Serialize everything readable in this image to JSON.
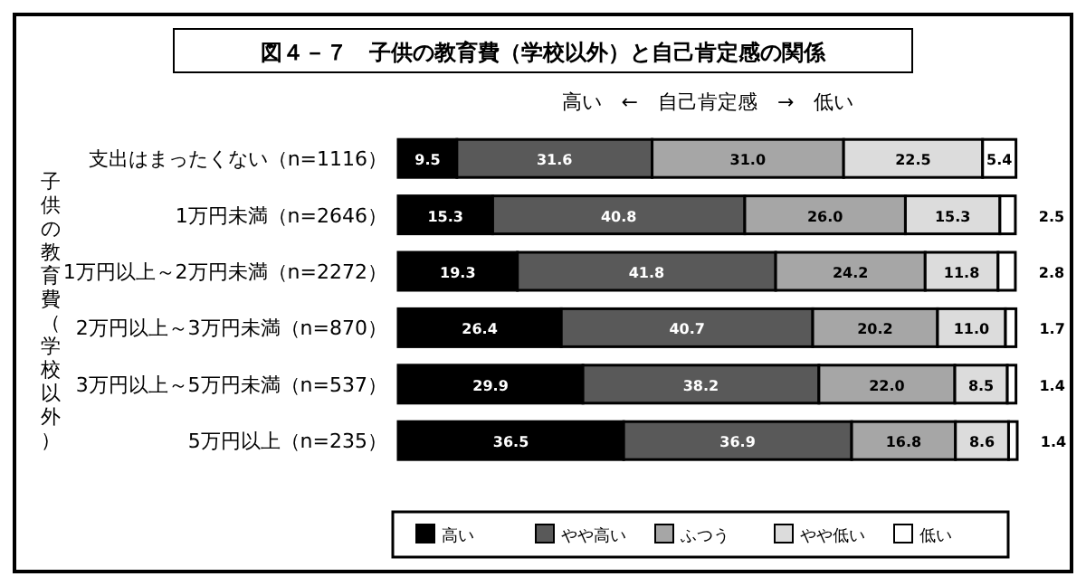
{
  "chart_data": {
    "type": "bar",
    "orientation": "horizontal",
    "stacked": true,
    "title": "図４－７　子供の教育費（学校以外）と自己肯定感の関係",
    "ylabel": "子供の教育費（学校以外）",
    "annotations": [
      "高い　←　自己肯定感　→　低い"
    ],
    "categories": [
      "支出はまったくない（n=1116）",
      "1万円未満（n=2646）",
      "1万円以上～2万円未満（n=2272）",
      "2万円以上～3万円未満（n=870）",
      "3万円以上～5万円未満（n=537）",
      "5万円以上（n=235）"
    ],
    "series": [
      {
        "name": "高い",
        "color": "#000000",
        "values": [
          9.5,
          15.3,
          19.3,
          26.4,
          29.9,
          36.5
        ],
        "value_labels": [
          "9.5",
          "15.3",
          "19.3",
          "26.4",
          "29.9",
          "36.5"
        ]
      },
      {
        "name": "やや高い",
        "color": "#595959",
        "values": [
          31.6,
          40.8,
          41.8,
          40.7,
          38.2,
          36.9
        ],
        "value_labels": [
          "31.6",
          "40.8",
          "41.8",
          "40.7",
          "38.2",
          "36.9"
        ]
      },
      {
        "name": "ふつう",
        "color": "#a6a6a6",
        "values": [
          31.0,
          26.0,
          24.2,
          20.2,
          22.0,
          16.8
        ],
        "value_labels": [
          "31.0",
          "26.0",
          "24.2",
          "20.2",
          "22.0",
          "16.8"
        ]
      },
      {
        "name": "やや低い",
        "color": "#dcdcdc",
        "values": [
          22.5,
          15.3,
          11.8,
          11.0,
          8.5,
          8.6
        ],
        "value_labels": [
          "22.5",
          "15.3",
          "11.8",
          "11.0",
          "8.5",
          "8.6"
        ]
      },
      {
        "name": "低い",
        "color": "#ffffff",
        "values": [
          5.4,
          2.5,
          2.8,
          1.7,
          1.4,
          1.4
        ],
        "value_labels": [
          "5.4",
          "2.5",
          "2.8",
          "1.7",
          "1.4",
          "1.4"
        ]
      }
    ],
    "legend": "bottom"
  }
}
